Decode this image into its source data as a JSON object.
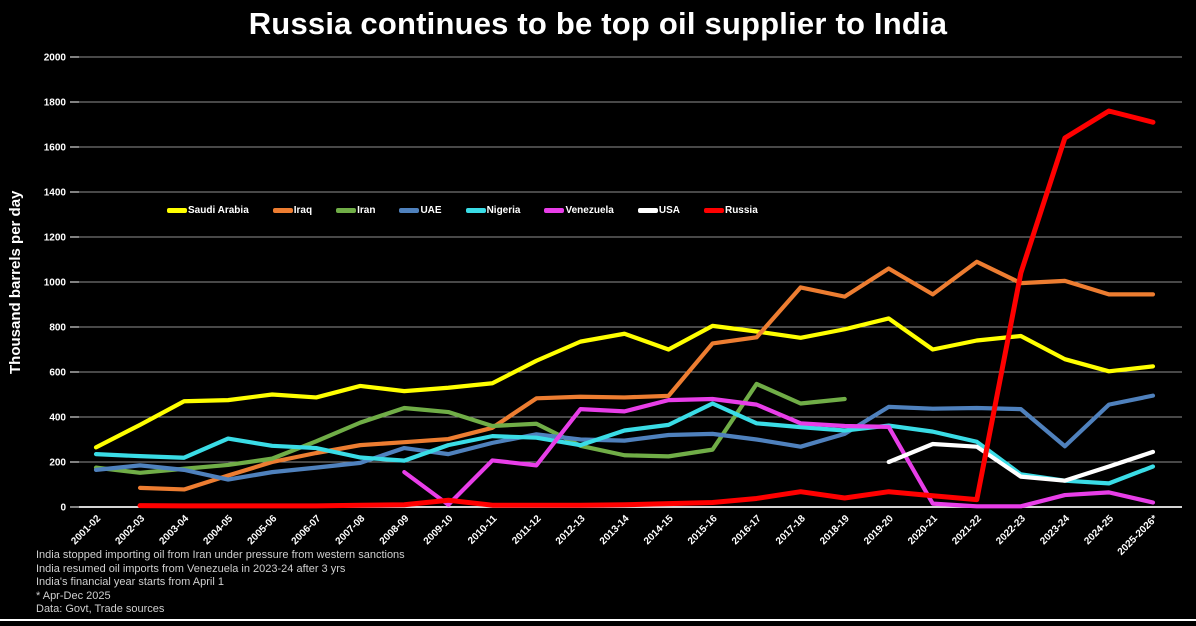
{
  "title": "Russia continues to be top oil supplier to India",
  "y_axis_label": "Thousand barrels per day",
  "footnotes": [
    "India stopped importing oil from Iran under pressure from western sanctions",
    "India resumed oil imports from Venezuela in 2023-24 after 3 yrs",
    "India's financial year starts from April 1",
    "* Apr-Dec 2025",
    "Data: Govt, Trade sources"
  ],
  "colors": {
    "background": "#000000",
    "gridline": "#8f8f8f",
    "zero_line": "#f2f2f2",
    "tick": "#d9d9d9",
    "text": "#ffffff",
    "footnote_text": "#cfcfcf"
  },
  "chart_data": {
    "type": "line",
    "title": "Russia continues to be top oil supplier to India",
    "xlabel": "",
    "ylabel": "Thousand barrels per day",
    "ylim": [
      0,
      2000
    ],
    "ytick_step": 200,
    "grid": true,
    "legend_position": "inside-upper-left-horizontal",
    "categories": [
      "2001-02",
      "2002-03",
      "2003-04",
      "2004-05",
      "2005-06",
      "2006-07",
      "2007-08",
      "2008-09",
      "2009-10",
      "2010-11",
      "2011-12",
      "2012-13",
      "2013-14",
      "2014-15",
      "2015-16",
      "2016-17",
      "2017-18",
      "2018-19",
      "2019-20",
      "2020-21",
      "2021-22",
      "2022-23",
      "2023-24",
      "2024-25",
      "2025-2026*"
    ],
    "series": [
      {
        "name": "Saudi Arabia",
        "color": "#ffff00",
        "values": [
          265,
          365,
          470,
          475,
          500,
          487,
          538,
          515,
          530,
          550,
          650,
          735,
          770,
          700,
          805,
          780,
          752,
          790,
          838,
          700,
          740,
          760,
          657,
          603,
          625
        ]
      },
      {
        "name": "Iraq",
        "color": "#ed7d31",
        "values": [
          null,
          85,
          78,
          140,
          200,
          240,
          275,
          288,
          302,
          352,
          483,
          490,
          487,
          494,
          727,
          754,
          976,
          935,
          1060,
          945,
          1090,
          995,
          1005,
          945,
          945
        ]
      },
      {
        "name": "Iran",
        "color": "#70ad47",
        "values": [
          175,
          152,
          170,
          187,
          215,
          292,
          375,
          440,
          422,
          360,
          370,
          272,
          230,
          225,
          255,
          547,
          460,
          480,
          null,
          null,
          null,
          null,
          null,
          null,
          null
        ]
      },
      {
        "name": "UAE",
        "color": "#4f81bd",
        "values": [
          165,
          185,
          165,
          122,
          155,
          175,
          196,
          262,
          235,
          285,
          323,
          300,
          295,
          320,
          325,
          300,
          268,
          325,
          445,
          437,
          440,
          435,
          270,
          455,
          495
        ]
      },
      {
        "name": "Nigeria",
        "color": "#3adce6",
        "values": [
          235,
          226,
          219,
          304,
          272,
          262,
          220,
          206,
          275,
          315,
          308,
          275,
          340,
          365,
          460,
          372,
          355,
          340,
          362,
          335,
          290,
          145,
          117,
          105,
          180
        ]
      },
      {
        "name": "Venezuela",
        "color": "#e83ee8",
        "values": [
          null,
          null,
          null,
          null,
          null,
          null,
          null,
          155,
          10,
          207,
          185,
          435,
          425,
          475,
          480,
          455,
          372,
          360,
          356,
          15,
          3,
          3,
          53,
          65,
          20
        ]
      },
      {
        "name": "USA",
        "color": "#ffffff",
        "values": [
          null,
          null,
          null,
          null,
          null,
          null,
          null,
          null,
          null,
          null,
          null,
          null,
          null,
          null,
          null,
          null,
          null,
          null,
          200,
          280,
          268,
          135,
          117,
          180,
          245
        ]
      },
      {
        "name": "Russia",
        "color": "#ff0000",
        "values": [
          null,
          6,
          5,
          5,
          5,
          5,
          8,
          10,
          30,
          8,
          8,
          8,
          10,
          15,
          20,
          38,
          68,
          40,
          68,
          50,
          33,
          1040,
          1640,
          1760,
          1710
        ]
      }
    ]
  }
}
